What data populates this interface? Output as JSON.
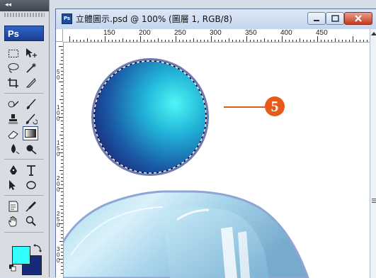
{
  "toolbox": {
    "collapse_glyph": "◂◂",
    "logo": "Ps",
    "foreground_color": "#33ffff",
    "background_color": "#17297a"
  },
  "document": {
    "title": "立體圖示.psd @ 100% (圖層 1, RGB/8)",
    "doc_icon_text": "Ps",
    "ruler_top_labels": [
      "150",
      "200",
      "250",
      "300",
      "350",
      "400",
      "450"
    ],
    "ruler_left_labels": [
      "5",
      "0",
      "1",
      "0",
      "0",
      "1",
      "5",
      "0",
      "2",
      "0",
      "0",
      "2",
      "5",
      "0",
      "3",
      "0",
      "0"
    ]
  },
  "callout": {
    "number": "5",
    "color": "#e85a1a"
  }
}
